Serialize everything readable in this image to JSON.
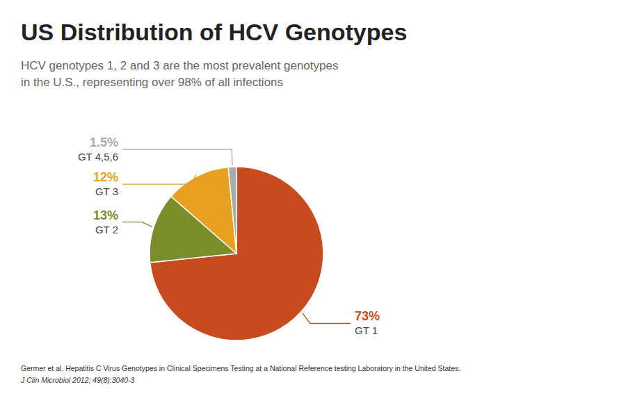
{
  "chart_data": {
    "type": "pie",
    "title": "US Distribution of HCV Genotypes",
    "subtitle": [
      "HCV genotypes 1, 2 and 3 are the most prevalent genotypes",
      "in the U.S., representing over 98% of all infections"
    ],
    "annotations": [
      "Germer et al. Hepatitis C Virus Genotypes in Clinical Specimens Testing at a National Reference testing Laboratory in the United States.",
      "J Clin Microbiol 2012; 49(8):3040-3"
    ],
    "categories": [
      "GT 1",
      "GT 2",
      "GT 3",
      "GT 4,5,6"
    ],
    "values": [
      73,
      13,
      12,
      1.5
    ],
    "value_labels": [
      "73%",
      "13%",
      "12%",
      "1.5%"
    ],
    "colors": [
      "#C84B20",
      "#7B8C2A",
      "#E8A020",
      "#AAAAAA"
    ],
    "data_labels": true
  }
}
